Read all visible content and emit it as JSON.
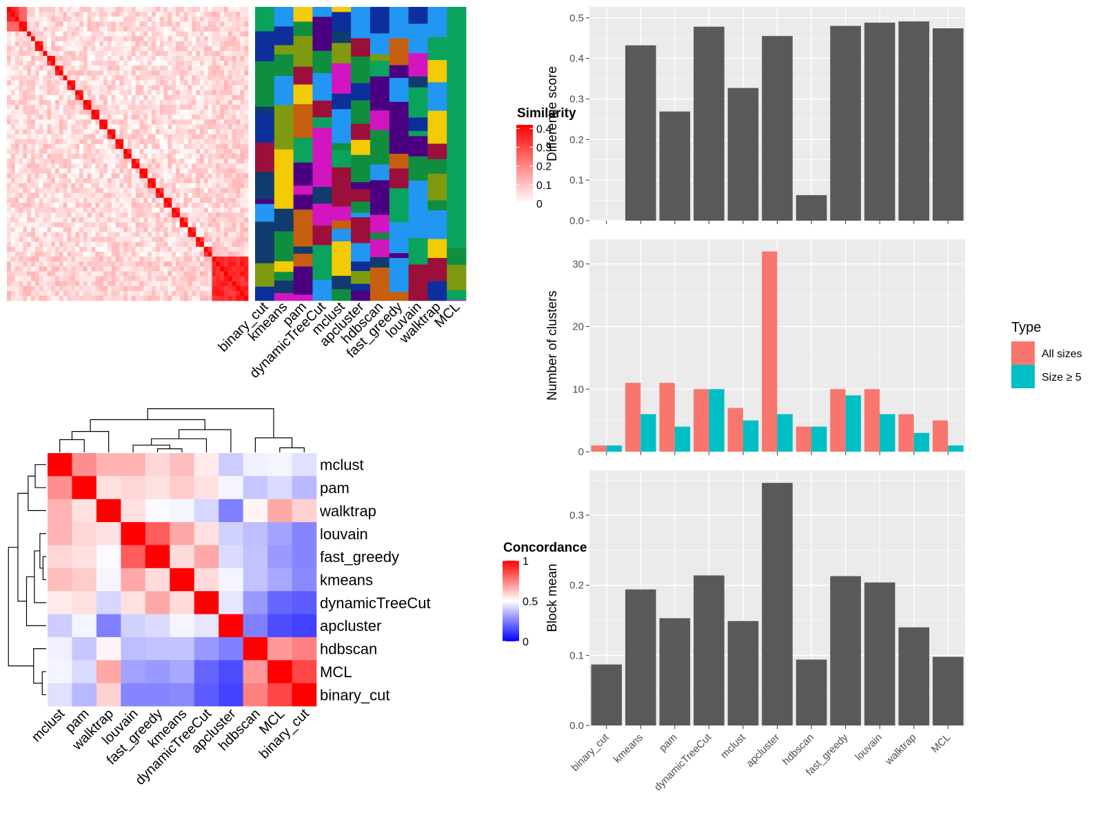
{
  "colors": {
    "bar_fill": "#595959",
    "panel_bg": "#ebebeb",
    "grid_major": "#ffffff",
    "all_sizes": "#f8766d",
    "size_ge5": "#00bfc4",
    "sim_high": "#ff0000",
    "conc_high": "#ff0000",
    "conc_mid": "#ffffff",
    "conc_low": "#0000ff"
  },
  "methods_bar_order": [
    "binary_cut",
    "kmeans",
    "pam",
    "dynamicTreeCut",
    "mclust",
    "apcluster",
    "hdbscan",
    "fast_greedy",
    "louvain",
    "walktrap",
    "MCL"
  ],
  "similarity_panel": {
    "legend_title": "Similarity",
    "legend_ticks": [
      "0.4",
      "0.3",
      "0.2",
      "0.1",
      "0"
    ],
    "legend_tick_values": [
      0.4,
      0.3,
      0.2,
      0.1,
      0
    ],
    "method_labels": [
      "binary_cut",
      "kmeans",
      "pam",
      "dynamicTreeCut",
      "mclust",
      "apcluster",
      "hdbscan",
      "fast_greedy",
      "louvain",
      "walktrap",
      "MCL"
    ]
  },
  "concordance_panel": {
    "legend_title": "Concordance",
    "legend_ticks": [
      "1",
      "0.5",
      "0"
    ],
    "legend_tick_values": [
      1,
      0.5,
      0
    ],
    "order": [
      "mclust",
      "pam",
      "walktrap",
      "louvain",
      "fast_greedy",
      "kmeans",
      "dynamicTreeCut",
      "apcluster",
      "hdbscan",
      "MCL",
      "binary_cut"
    ],
    "matrix": [
      [
        1.0,
        0.72,
        0.65,
        0.65,
        0.58,
        0.63,
        0.54,
        0.4,
        0.47,
        0.48,
        0.44
      ],
      [
        0.72,
        1.0,
        0.56,
        0.58,
        0.56,
        0.6,
        0.56,
        0.48,
        0.39,
        0.43,
        0.36
      ],
      [
        0.65,
        0.56,
        1.0,
        0.56,
        0.49,
        0.48,
        0.42,
        0.25,
        0.52,
        0.67,
        0.59
      ],
      [
        0.65,
        0.58,
        0.56,
        1.0,
        0.82,
        0.67,
        0.56,
        0.41,
        0.37,
        0.32,
        0.26
      ],
      [
        0.58,
        0.56,
        0.49,
        0.82,
        1.0,
        0.57,
        0.67,
        0.43,
        0.38,
        0.3,
        0.26
      ],
      [
        0.63,
        0.6,
        0.48,
        0.67,
        0.57,
        1.0,
        0.57,
        0.48,
        0.38,
        0.33,
        0.27
      ],
      [
        0.54,
        0.56,
        0.42,
        0.56,
        0.67,
        0.57,
        1.0,
        0.45,
        0.3,
        0.2,
        0.18
      ],
      [
        0.4,
        0.48,
        0.25,
        0.41,
        0.43,
        0.48,
        0.45,
        1.0,
        0.25,
        0.15,
        0.13
      ],
      [
        0.47,
        0.39,
        0.52,
        0.37,
        0.38,
        0.38,
        0.3,
        0.25,
        1.0,
        0.7,
        0.75
      ],
      [
        0.48,
        0.43,
        0.67,
        0.32,
        0.3,
        0.33,
        0.2,
        0.15,
        0.7,
        1.0,
        0.86
      ],
      [
        0.44,
        0.36,
        0.59,
        0.26,
        0.26,
        0.27,
        0.18,
        0.13,
        0.75,
        0.86,
        1.0
      ]
    ]
  },
  "chart_data": [
    {
      "type": "bar",
      "categories": [
        "binary_cut",
        "kmeans",
        "pam",
        "dynamicTreeCut",
        "mclust",
        "apcluster",
        "hdbscan",
        "fast_greedy",
        "louvain",
        "walktrap",
        "MCL"
      ],
      "values": [
        0.0,
        0.432,
        0.269,
        0.478,
        0.327,
        0.455,
        0.063,
        0.48,
        0.488,
        0.491,
        0.474
      ],
      "title": "",
      "xlabel": "",
      "ylabel": "Difference score",
      "ylim": [
        0,
        0.52
      ],
      "yticks": [
        0.0,
        0.1,
        0.2,
        0.3,
        0.4,
        0.5
      ],
      "ytick_labels": [
        "0.0",
        "0.1",
        "0.2",
        "0.3",
        "0.4",
        "0.5"
      ],
      "grid": true
    },
    {
      "type": "bar",
      "categories": [
        "binary_cut",
        "kmeans",
        "pam",
        "dynamicTreeCut",
        "mclust",
        "apcluster",
        "hdbscan",
        "fast_greedy",
        "louvain",
        "walktrap",
        "MCL"
      ],
      "series": [
        {
          "name": "All sizes",
          "values": [
            1,
            11,
            11,
            10,
            7,
            32,
            4,
            10,
            10,
            6,
            5
          ]
        },
        {
          "name": "Size ≥ 5",
          "values": [
            1,
            6,
            4,
            10,
            5,
            6,
            4,
            9,
            6,
            3,
            1
          ]
        }
      ],
      "title": "",
      "xlabel": "",
      "ylabel": "Number of clusters",
      "ylim": [
        0,
        33.5
      ],
      "yticks": [
        0,
        10,
        20,
        30
      ],
      "ytick_labels": [
        "0",
        "10",
        "20",
        "30"
      ],
      "legend_title": "Type",
      "legend_position": "right",
      "grid": true
    },
    {
      "type": "bar",
      "categories": [
        "binary_cut",
        "kmeans",
        "pam",
        "dynamicTreeCut",
        "mclust",
        "apcluster",
        "hdbscan",
        "fast_greedy",
        "louvain",
        "walktrap",
        "MCL"
      ],
      "values": [
        0.087,
        0.194,
        0.153,
        0.214,
        0.149,
        0.346,
        0.094,
        0.213,
        0.204,
        0.14,
        0.098
      ],
      "title": "",
      "xlabel": "",
      "ylabel": "Block mean",
      "ylim": [
        0,
        0.36
      ],
      "yticks": [
        0.0,
        0.1,
        0.2,
        0.3
      ],
      "ytick_labels": [
        "0.0",
        "0.1",
        "0.2",
        "0.3"
      ],
      "grid": true
    }
  ]
}
